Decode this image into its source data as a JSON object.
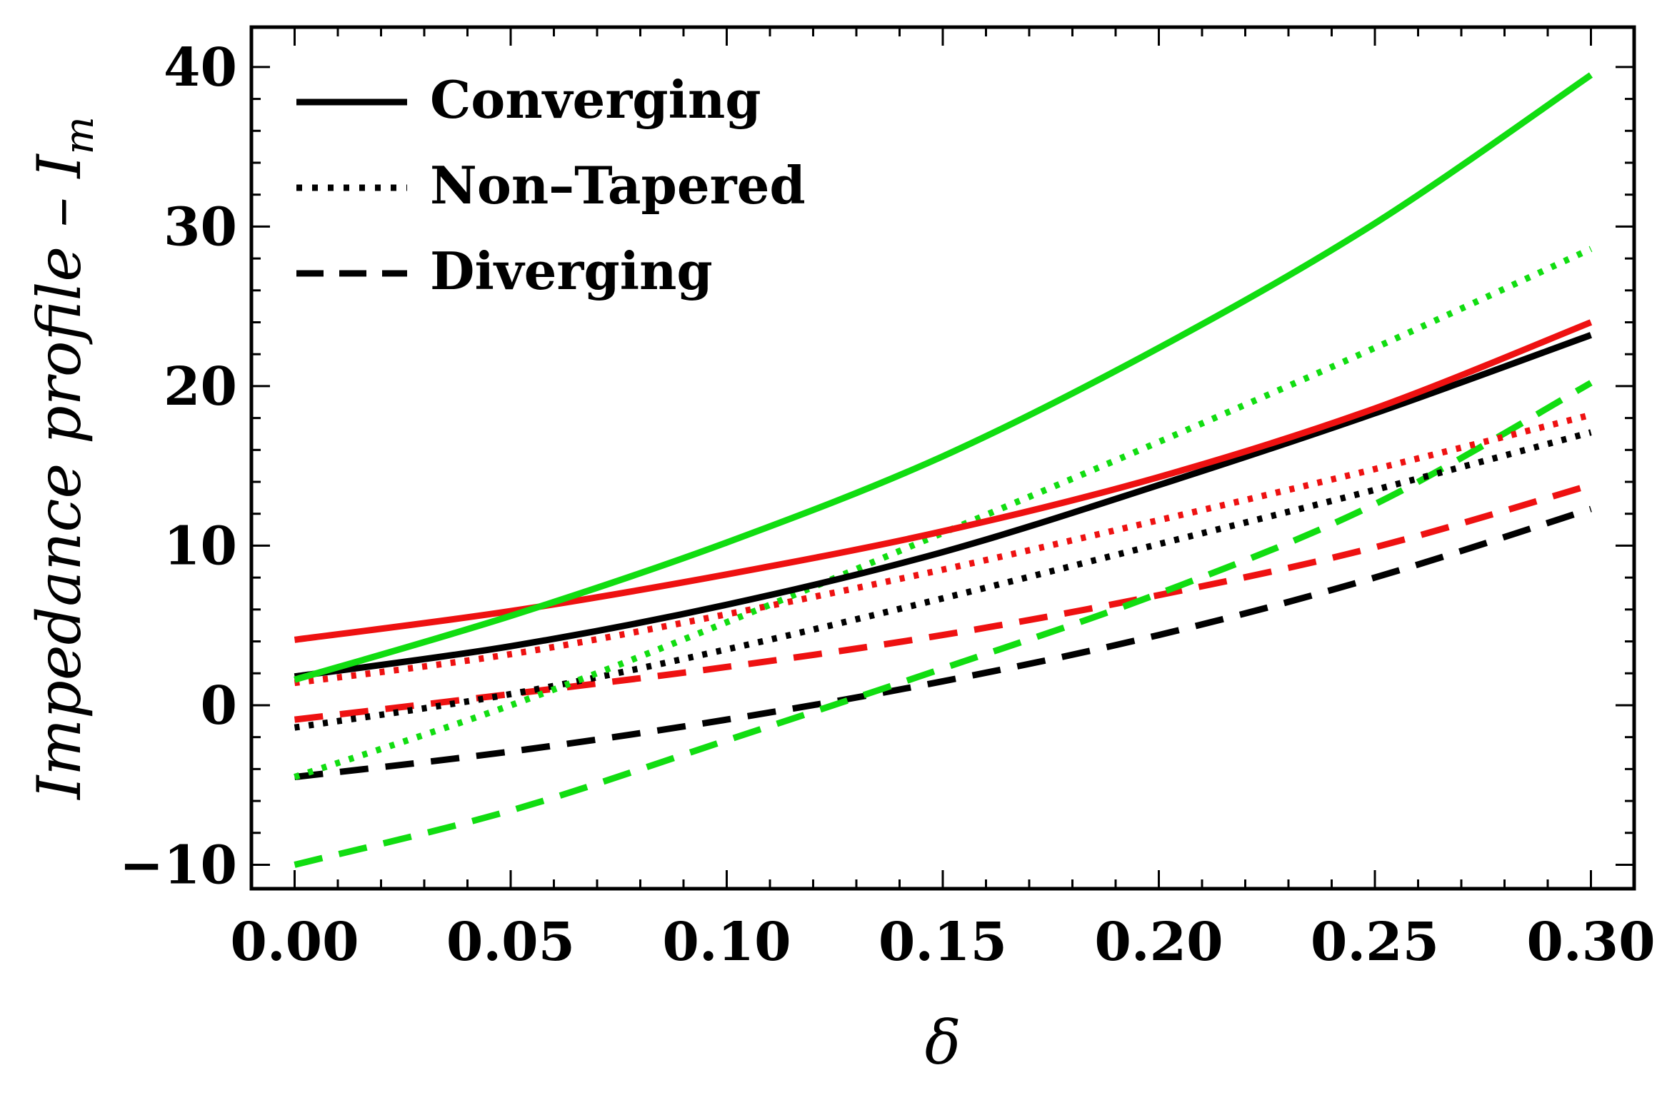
{
  "chart_data": {
    "type": "line",
    "title": "",
    "xlabel": "δ",
    "ylabel_main": "Impedance profile – I",
    "ylabel_sub": "m",
    "xlim": [
      -0.01,
      0.31
    ],
    "ylim": [
      -11.5,
      42.5
    ],
    "x_ticks": [
      0.0,
      0.05,
      0.1,
      0.15,
      0.2,
      0.25,
      0.3
    ],
    "x_tick_labels": [
      "0.00",
      "0.05",
      "0.10",
      "0.15",
      "0.20",
      "0.25",
      "0.30"
    ],
    "y_ticks": [
      -10,
      0,
      10,
      20,
      30,
      40
    ],
    "y_tick_labels": [
      "−10",
      "0",
      "10",
      "20",
      "30",
      "40"
    ],
    "legend_position": "top-left",
    "legend": [
      {
        "label": "Converging",
        "style": "solid"
      },
      {
        "label": "Non–Tapered",
        "style": "dotted"
      },
      {
        "label": "Diverging",
        "style": "dashed"
      }
    ],
    "x": [
      0.0,
      0.05,
      0.1,
      0.15,
      0.2,
      0.25,
      0.3
    ],
    "series": [
      {
        "name": "Converging (black)",
        "color": "#000000",
        "style": "solid",
        "values": [
          1.8,
          3.7,
          6.3,
          9.6,
          13.8,
          18.3,
          23.2
        ]
      },
      {
        "name": "Converging (red)",
        "color": "#ee1111",
        "style": "solid",
        "values": [
          4.1,
          5.9,
          8.2,
          10.9,
          14.3,
          18.6,
          24.0
        ]
      },
      {
        "name": "Converging (green)",
        "color": "#11dd11",
        "style": "solid",
        "values": [
          1.6,
          5.6,
          10.2,
          15.6,
          22.4,
          30.2,
          39.5
        ]
      },
      {
        "name": "Non–Tapered (black)",
        "color": "#000000",
        "style": "dotted",
        "values": [
          -1.4,
          0.7,
          3.5,
          6.7,
          10.1,
          13.5,
          17.1
        ]
      },
      {
        "name": "Non–Tapered (red)",
        "color": "#ee1111",
        "style": "dotted",
        "values": [
          1.4,
          3.2,
          5.7,
          8.5,
          11.6,
          14.8,
          18.2
        ]
      },
      {
        "name": "Non–Tapered (green)",
        "color": "#11dd11",
        "style": "dotted",
        "values": [
          -4.5,
          0.0,
          5.2,
          10.8,
          16.5,
          22.4,
          28.6
        ]
      },
      {
        "name": "Diverging (black)",
        "color": "#000000",
        "style": "dashed",
        "values": [
          -4.5,
          -2.9,
          -0.9,
          1.5,
          4.4,
          8.0,
          12.3
        ]
      },
      {
        "name": "Diverging (red)",
        "color": "#ee1111",
        "style": "dashed",
        "values": [
          -0.9,
          0.7,
          2.4,
          4.4,
          6.9,
          9.9,
          13.8
        ]
      },
      {
        "name": "Diverging (green)",
        "color": "#11dd11",
        "style": "dashed",
        "values": [
          -10.0,
          -6.6,
          -2.2,
          2.3,
          7.0,
          12.6,
          20.2
        ]
      }
    ]
  }
}
